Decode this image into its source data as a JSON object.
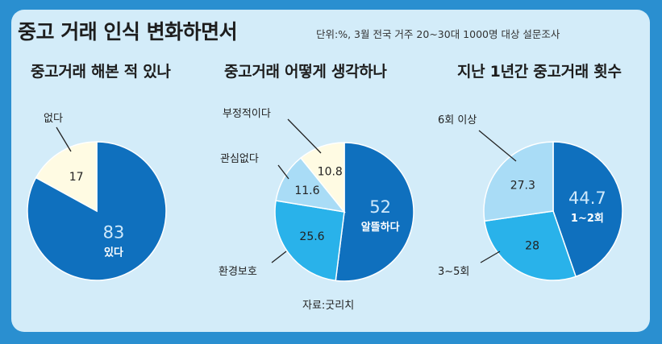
{
  "header": {
    "title": "중고 거래 인식 변화하면서",
    "subtitle": "단위:%, 3월 전국 거주 20~30대 1000명 대상 설문조사"
  },
  "source": "자료:굿리치",
  "colors": {
    "dark_blue": "#0f70be",
    "mid_blue": "#29b2ea",
    "light_blue": "#a9dcf6",
    "cream": "#fffbe3",
    "background": "#d3ecf9"
  },
  "chart_data": [
    {
      "type": "pie",
      "title": "중고거래 해본 적 있나",
      "slices": [
        {
          "label": "있다",
          "value": 83,
          "display": "83",
          "color": "#0f70be"
        },
        {
          "label": "없다",
          "value": 17,
          "display": "17",
          "color": "#fffbe3"
        }
      ]
    },
    {
      "type": "pie",
      "title": "중고거래 어떻게 생각하나",
      "slices": [
        {
          "label": "알뜰하다",
          "value": 52,
          "display": "52",
          "color": "#0f70be"
        },
        {
          "label": "환경보호",
          "value": 25.6,
          "display": "25.6",
          "color": "#29b2ea"
        },
        {
          "label": "관심없다",
          "value": 11.6,
          "display": "11.6",
          "color": "#a9dcf6"
        },
        {
          "label": "부정적이다",
          "value": 10.8,
          "display": "10.8",
          "color": "#fffbe3"
        }
      ]
    },
    {
      "type": "pie",
      "title": "지난 1년간 중고거래 횟수",
      "slices": [
        {
          "label": "1~2회",
          "value": 44.7,
          "display": "44.7",
          "color": "#0f70be"
        },
        {
          "label": "3~5회",
          "value": 28,
          "display": "28",
          "color": "#29b2ea"
        },
        {
          "label": "6회 이상",
          "value": 27.3,
          "display": "27.3",
          "color": "#a9dcf6"
        }
      ]
    }
  ]
}
